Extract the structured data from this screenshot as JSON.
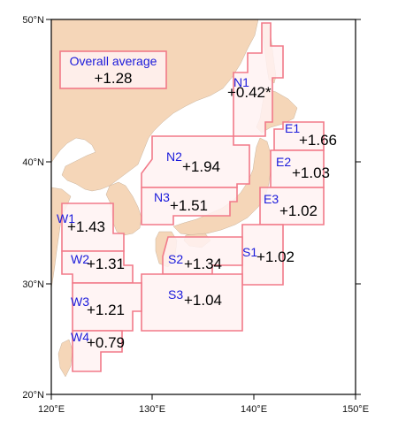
{
  "map": {
    "colors": {
      "sea": "#ffffff",
      "land": "#f5d6b8",
      "region_fill": "#fff2f2",
      "region_stroke": "#f27a89",
      "code_text": "#1a1adb",
      "value_text": "#000000"
    },
    "axes": {
      "lat_labels": [
        "50°N",
        "40°N",
        "30°N",
        "20°N"
      ],
      "lon_labels": [
        "120°E",
        "130°E",
        "140°E",
        "150°E"
      ]
    },
    "overall_average": {
      "title": "Overall average",
      "value": "+1.28"
    },
    "regions": [
      {
        "code": "N1",
        "value": "+0.42*"
      },
      {
        "code": "N2",
        "value": "+1.94"
      },
      {
        "code": "N3",
        "value": "+1.51"
      },
      {
        "code": "E1",
        "value": "+1.66"
      },
      {
        "code": "E2",
        "value": "+1.03"
      },
      {
        "code": "E3",
        "value": "+1.02"
      },
      {
        "code": "S1",
        "value": "+1.02"
      },
      {
        "code": "S2",
        "value": "+1.34"
      },
      {
        "code": "S3",
        "value": "+1.04"
      },
      {
        "code": "W1",
        "value": "+1.43"
      },
      {
        "code": "W2",
        "value": "+1.31"
      },
      {
        "code": "W3",
        "value": "+1.21"
      },
      {
        "code": "W4",
        "value": "+0.79"
      }
    ]
  }
}
